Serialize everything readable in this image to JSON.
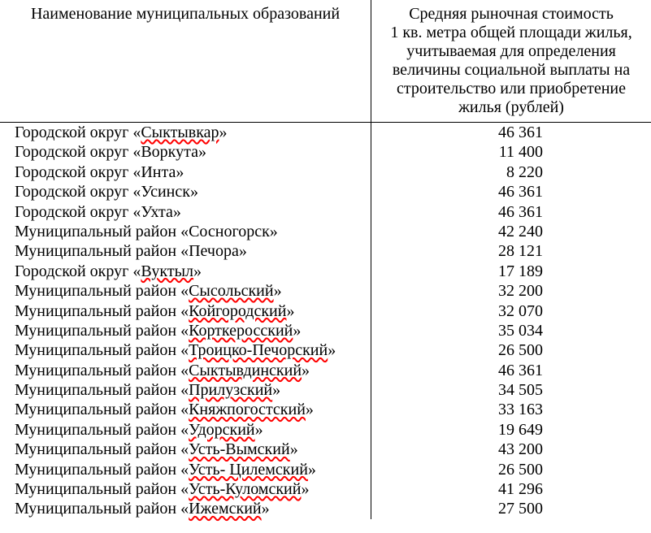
{
  "table": {
    "type": "table",
    "font_family": "Times New Roman",
    "body_font_size_pt": 15,
    "text_color": "#000000",
    "background_color": "#ffffff",
    "border_color": "#000000",
    "wavy_underline_color": "#ff0000",
    "column_widths_pct": [
      57,
      43
    ],
    "columns": {
      "name": "Наименование муниципальных образований",
      "value": "Средняя рыночная стоимость 1 кв. метра общей площади жилья, учитываемая для определения величины социальной выплаты на строительство или приобретение жилья (рублей)"
    },
    "rows": [
      {
        "name_prefix": "Городской округ «",
        "name_wavy": "Сыктывкар",
        "name_suffix": "»",
        "value": "46 361"
      },
      {
        "name_prefix": "Городской округ «Воркута»",
        "name_wavy": "",
        "name_suffix": "",
        "value": "11 400"
      },
      {
        "name_prefix": "Городской округ «Инта»",
        "name_wavy": "",
        "name_suffix": "",
        "value": "8 220"
      },
      {
        "name_prefix": "Городской округ «Усинск»",
        "name_wavy": "",
        "name_suffix": "",
        "value": "46 361"
      },
      {
        "name_prefix": "Городской округ «Ухта»",
        "name_wavy": "",
        "name_suffix": "",
        "value": "46 361"
      },
      {
        "name_prefix": "Муниципальный район «Сосногорск»",
        "name_wavy": "",
        "name_suffix": "",
        "value": "42 240"
      },
      {
        "name_prefix": "Муниципальный район «Печора»",
        "name_wavy": "",
        "name_suffix": "",
        "value": "28 121"
      },
      {
        "name_prefix": "Городской округ «",
        "name_wavy": "Вуктыл",
        "name_suffix": "»",
        "value": "17 189"
      },
      {
        "name_prefix": "Муниципальный район «",
        "name_wavy": "Сысольский",
        "name_suffix": "»",
        "value": "32 200"
      },
      {
        "name_prefix": "Муниципальный район «",
        "name_wavy": "Койгородский",
        "name_suffix": "»",
        "value": "32 070"
      },
      {
        "name_prefix": "Муниципальный район «",
        "name_wavy": "Корткеросский",
        "name_suffix": "»",
        "value": "35 034"
      },
      {
        "name_prefix": "Муниципальный район «",
        "name_wavy": "Троицко-Печорский",
        "name_suffix": "»",
        "value": "26 500"
      },
      {
        "name_prefix": "Муниципальный район «",
        "name_wavy": "Сыктывдинский",
        "name_suffix": "»",
        "value": "46 361"
      },
      {
        "name_prefix": "Муниципальный район «",
        "name_wavy": "Прилузский",
        "name_suffix": "»",
        "value": "34 505"
      },
      {
        "name_prefix": "Муниципальный район «",
        "name_wavy": "Княжпогостский",
        "name_suffix": "»",
        "value": "33 163"
      },
      {
        "name_prefix": "Муниципальный район «",
        "name_wavy": "Удорский",
        "name_suffix": "»",
        "value": "19 649"
      },
      {
        "name_prefix": "Муниципальный район «",
        "name_wavy": "Усть-Вымский",
        "name_suffix": "»",
        "value": "43 200"
      },
      {
        "name_prefix": "Муниципальный район «",
        "name_wavy": "Усть- Цилемский",
        "name_suffix": "»",
        "value": "26 500"
      },
      {
        "name_prefix": "Муниципальный район «",
        "name_wavy": "Усть-Куломский",
        "name_suffix": "»",
        "value": "41 296"
      },
      {
        "name_prefix": "Муниципальный район «",
        "name_wavy": "Ижемский",
        "name_suffix": "»",
        "value": "27 500"
      }
    ]
  }
}
